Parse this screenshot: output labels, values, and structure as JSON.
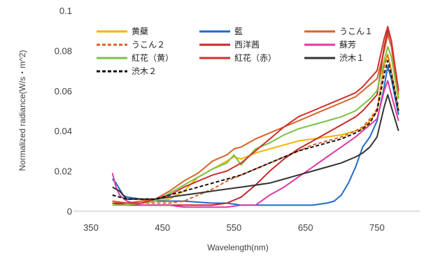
{
  "chart_data": {
    "type": "line",
    "xlabel": "Wavelength(nm)",
    "ylabel": "Normalized radiance(W/s・m^2)",
    "xlim": [
      350,
      800
    ],
    "ylim": [
      0,
      0.1
    ],
    "xticks": [
      350,
      450,
      550,
      650,
      750
    ],
    "yticks": [
      0,
      0.02,
      0.04,
      0.06,
      0.08,
      0.1
    ],
    "ytick_labels": [
      "0",
      "0.02",
      "0.04",
      "0.06",
      "0.08",
      "0.1"
    ],
    "grid": false,
    "legend_position": "top, inside plot area",
    "series": [
      {
        "name": "黄蘗",
        "color": "#f5b400",
        "dash": false,
        "points": [
          [
            380,
            0.004
          ],
          [
            390,
            0.003
          ],
          [
            400,
            0.003
          ],
          [
            420,
            0.004
          ],
          [
            440,
            0.005
          ],
          [
            460,
            0.006
          ],
          [
            480,
            0.01
          ],
          [
            500,
            0.017
          ],
          [
            520,
            0.021
          ],
          [
            540,
            0.025
          ],
          [
            550,
            0.027
          ],
          [
            560,
            0.026
          ],
          [
            580,
            0.029
          ],
          [
            600,
            0.031
          ],
          [
            620,
            0.033
          ],
          [
            640,
            0.035
          ],
          [
            660,
            0.036
          ],
          [
            680,
            0.037
          ],
          [
            700,
            0.038
          ],
          [
            720,
            0.04
          ],
          [
            730,
            0.041
          ],
          [
            740,
            0.045
          ],
          [
            750,
            0.05
          ],
          [
            760,
            0.073
          ],
          [
            765,
            0.078
          ],
          [
            770,
            0.07
          ],
          [
            780,
            0.05
          ]
        ]
      },
      {
        "name": "藍",
        "color": "#1f6bc9",
        "dash": false,
        "points": [
          [
            380,
            0.016
          ],
          [
            385,
            0.014
          ],
          [
            390,
            0.011
          ],
          [
            395,
            0.008
          ],
          [
            400,
            0.007
          ],
          [
            420,
            0.006
          ],
          [
            440,
            0.005
          ],
          [
            460,
            0.005
          ],
          [
            480,
            0.005
          ],
          [
            500,
            0.0045
          ],
          [
            520,
            0.004
          ],
          [
            540,
            0.004
          ],
          [
            560,
            0.003
          ],
          [
            580,
            0.003
          ],
          [
            600,
            0.003
          ],
          [
            620,
            0.003
          ],
          [
            640,
            0.003
          ],
          [
            660,
            0.003
          ],
          [
            680,
            0.004
          ],
          [
            690,
            0.005
          ],
          [
            700,
            0.008
          ],
          [
            710,
            0.014
          ],
          [
            720,
            0.022
          ],
          [
            730,
            0.032
          ],
          [
            740,
            0.037
          ],
          [
            750,
            0.045
          ],
          [
            760,
            0.062
          ],
          [
            765,
            0.072
          ],
          [
            770,
            0.066
          ],
          [
            780,
            0.048
          ]
        ]
      },
      {
        "name": "うこん１",
        "color": "#d4652a",
        "dash": false,
        "points": [
          [
            380,
            0.005
          ],
          [
            400,
            0.004
          ],
          [
            420,
            0.005
          ],
          [
            440,
            0.006
          ],
          [
            460,
            0.01
          ],
          [
            480,
            0.015
          ],
          [
            500,
            0.019
          ],
          [
            520,
            0.025
          ],
          [
            540,
            0.028
          ],
          [
            550,
            0.031
          ],
          [
            560,
            0.032
          ],
          [
            580,
            0.036
          ],
          [
            600,
            0.039
          ],
          [
            620,
            0.042
          ],
          [
            640,
            0.045
          ],
          [
            660,
            0.048
          ],
          [
            680,
            0.051
          ],
          [
            700,
            0.054
          ],
          [
            720,
            0.057
          ],
          [
            730,
            0.06
          ],
          [
            740,
            0.063
          ],
          [
            750,
            0.066
          ],
          [
            760,
            0.08
          ],
          [
            765,
            0.088
          ],
          [
            770,
            0.082
          ],
          [
            780,
            0.058
          ]
        ]
      },
      {
        "name": "うこん２",
        "color": "#d4652a",
        "dash": true,
        "points": [
          [
            380,
            0.005
          ],
          [
            400,
            0.004
          ],
          [
            420,
            0.004
          ],
          [
            440,
            0.004
          ],
          [
            460,
            0.004
          ],
          [
            480,
            0.005
          ],
          [
            500,
            0.008
          ],
          [
            520,
            0.011
          ],
          [
            540,
            0.015
          ],
          [
            560,
            0.018
          ],
          [
            580,
            0.021
          ],
          [
            600,
            0.024
          ],
          [
            620,
            0.027
          ],
          [
            640,
            0.03
          ],
          [
            660,
            0.033
          ],
          [
            680,
            0.035
          ],
          [
            700,
            0.037
          ],
          [
            720,
            0.04
          ],
          [
            730,
            0.042
          ],
          [
            740,
            0.046
          ],
          [
            750,
            0.051
          ],
          [
            760,
            0.072
          ],
          [
            765,
            0.078
          ],
          [
            770,
            0.07
          ],
          [
            780,
            0.052
          ]
        ]
      },
      {
        "name": "西洋茜",
        "color": "#c62828",
        "dash": false,
        "points": [
          [
            380,
            0.004
          ],
          [
            400,
            0.003
          ],
          [
            420,
            0.003
          ],
          [
            440,
            0.003
          ],
          [
            460,
            0.003
          ],
          [
            480,
            0.003
          ],
          [
            500,
            0.003
          ],
          [
            520,
            0.003
          ],
          [
            540,
            0.004
          ],
          [
            560,
            0.007
          ],
          [
            580,
            0.013
          ],
          [
            600,
            0.02
          ],
          [
            620,
            0.026
          ],
          [
            640,
            0.031
          ],
          [
            660,
            0.035
          ],
          [
            680,
            0.039
          ],
          [
            700,
            0.043
          ],
          [
            720,
            0.047
          ],
          [
            730,
            0.05
          ],
          [
            740,
            0.054
          ],
          [
            750,
            0.058
          ],
          [
            760,
            0.082
          ],
          [
            765,
            0.09
          ],
          [
            770,
            0.085
          ],
          [
            780,
            0.06
          ]
        ]
      },
      {
        "name": "蘇芳",
        "color": "#e0389f",
        "dash": false,
        "points": [
          [
            380,
            0.019
          ],
          [
            385,
            0.012
          ],
          [
            390,
            0.008
          ],
          [
            400,
            0.005
          ],
          [
            420,
            0.003
          ],
          [
            440,
            0.003
          ],
          [
            460,
            0.003
          ],
          [
            480,
            0.002
          ],
          [
            500,
            0.002
          ],
          [
            520,
            0.002
          ],
          [
            540,
            0.002
          ],
          [
            560,
            0.003
          ],
          [
            580,
            0.003
          ],
          [
            600,
            0.008
          ],
          [
            620,
            0.012
          ],
          [
            640,
            0.017
          ],
          [
            660,
            0.022
          ],
          [
            680,
            0.027
          ],
          [
            700,
            0.032
          ],
          [
            720,
            0.037
          ],
          [
            730,
            0.04
          ],
          [
            740,
            0.043
          ],
          [
            750,
            0.046
          ],
          [
            760,
            0.06
          ],
          [
            765,
            0.065
          ],
          [
            770,
            0.058
          ],
          [
            780,
            0.045
          ]
        ]
      },
      {
        "name": "紅花（黄）",
        "color": "#7cc242",
        "dash": false,
        "points": [
          [
            380,
            0.003
          ],
          [
            400,
            0.003
          ],
          [
            420,
            0.004
          ],
          [
            440,
            0.005
          ],
          [
            460,
            0.009
          ],
          [
            480,
            0.013
          ],
          [
            500,
            0.017
          ],
          [
            520,
            0.021
          ],
          [
            540,
            0.024
          ],
          [
            550,
            0.028
          ],
          [
            560,
            0.023
          ],
          [
            580,
            0.031
          ],
          [
            600,
            0.034
          ],
          [
            620,
            0.038
          ],
          [
            640,
            0.041
          ],
          [
            660,
            0.043
          ],
          [
            680,
            0.045
          ],
          [
            700,
            0.047
          ],
          [
            720,
            0.05
          ],
          [
            730,
            0.053
          ],
          [
            740,
            0.056
          ],
          [
            750,
            0.06
          ],
          [
            760,
            0.075
          ],
          [
            765,
            0.082
          ],
          [
            770,
            0.077
          ],
          [
            780,
            0.056
          ]
        ]
      },
      {
        "name": "紅花（赤）",
        "color": "#d32f2f",
        "dash": false,
        "points": [
          [
            380,
            0.004
          ],
          [
            400,
            0.004
          ],
          [
            420,
            0.004
          ],
          [
            440,
            0.006
          ],
          [
            460,
            0.008
          ],
          [
            480,
            0.012
          ],
          [
            500,
            0.015
          ],
          [
            520,
            0.018
          ],
          [
            540,
            0.02
          ],
          [
            560,
            0.024
          ],
          [
            580,
            0.03
          ],
          [
            600,
            0.036
          ],
          [
            620,
            0.042
          ],
          [
            640,
            0.047
          ],
          [
            660,
            0.05
          ],
          [
            680,
            0.053
          ],
          [
            700,
            0.056
          ],
          [
            720,
            0.059
          ],
          [
            730,
            0.062
          ],
          [
            740,
            0.066
          ],
          [
            750,
            0.07
          ],
          [
            760,
            0.086
          ],
          [
            765,
            0.092
          ],
          [
            770,
            0.085
          ],
          [
            780,
            0.06
          ]
        ]
      },
      {
        "name": "渋木１",
        "color": "#333333",
        "dash": false,
        "points": [
          [
            380,
            0.012
          ],
          [
            390,
            0.01
          ],
          [
            400,
            0.006
          ],
          [
            420,
            0.006
          ],
          [
            440,
            0.006
          ],
          [
            460,
            0.007
          ],
          [
            480,
            0.008
          ],
          [
            500,
            0.009
          ],
          [
            520,
            0.01
          ],
          [
            540,
            0.011
          ],
          [
            560,
            0.012
          ],
          [
            580,
            0.013
          ],
          [
            600,
            0.014
          ],
          [
            620,
            0.016
          ],
          [
            640,
            0.018
          ],
          [
            660,
            0.02
          ],
          [
            680,
            0.022
          ],
          [
            700,
            0.024
          ],
          [
            720,
            0.027
          ],
          [
            730,
            0.029
          ],
          [
            740,
            0.032
          ],
          [
            750,
            0.037
          ],
          [
            760,
            0.052
          ],
          [
            765,
            0.058
          ],
          [
            770,
            0.052
          ],
          [
            780,
            0.04
          ]
        ]
      },
      {
        "name": "渋木２",
        "color": "#111111",
        "dash": true,
        "points": [
          [
            380,
            0.008
          ],
          [
            400,
            0.006
          ],
          [
            420,
            0.006
          ],
          [
            440,
            0.006
          ],
          [
            460,
            0.008
          ],
          [
            480,
            0.01
          ],
          [
            500,
            0.012
          ],
          [
            520,
            0.014
          ],
          [
            540,
            0.016
          ],
          [
            560,
            0.018
          ],
          [
            580,
            0.021
          ],
          [
            600,
            0.024
          ],
          [
            620,
            0.027
          ],
          [
            640,
            0.03
          ],
          [
            660,
            0.032
          ],
          [
            680,
            0.034
          ],
          [
            700,
            0.036
          ],
          [
            720,
            0.039
          ],
          [
            730,
            0.041
          ],
          [
            740,
            0.044
          ],
          [
            750,
            0.05
          ],
          [
            760,
            0.068
          ],
          [
            765,
            0.075
          ],
          [
            770,
            0.068
          ],
          [
            780,
            0.05
          ]
        ]
      }
    ]
  }
}
